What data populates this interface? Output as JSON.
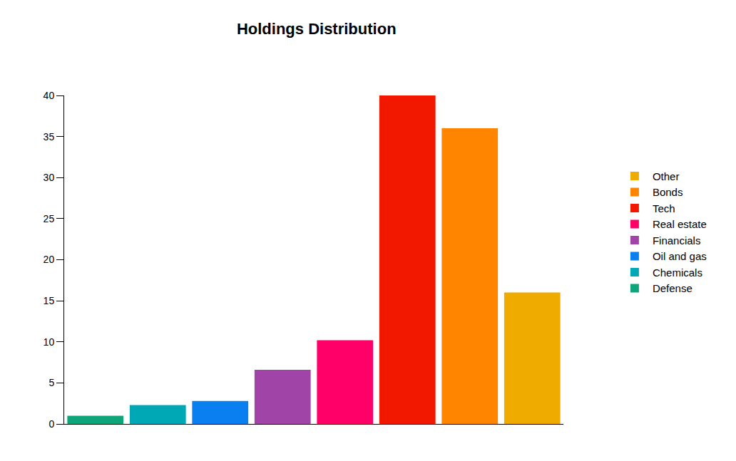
{
  "chart_data": {
    "type": "bar",
    "title": "Holdings Distribution",
    "categories": [
      "Defense",
      "Chemicals",
      "Oil and gas",
      "Financials",
      "Real estate",
      "Tech",
      "Bonds",
      "Other"
    ],
    "values": [
      1,
      2.3,
      2.8,
      6.6,
      10.2,
      40,
      36,
      16
    ],
    "colors": [
      "#0ea57a",
      "#00a7b5",
      "#0a80f0",
      "#a044a8",
      "#ff0068",
      "#f21800",
      "#ff8500",
      "#f0ab00"
    ],
    "ylim": [
      0,
      40
    ],
    "yticks": [
      0,
      5,
      10,
      15,
      20,
      25,
      30,
      35,
      40
    ],
    "grid": false,
    "legend": "right",
    "tick_labels": "y"
  }
}
